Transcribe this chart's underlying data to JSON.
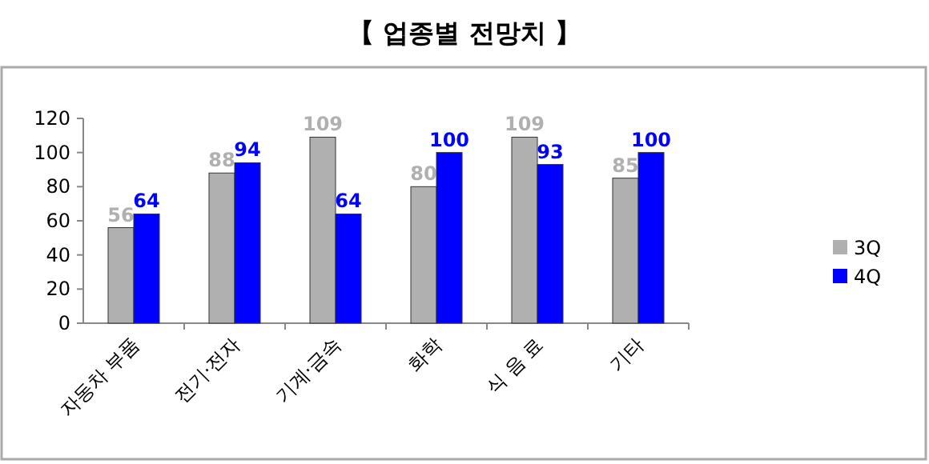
{
  "chart_data": {
    "type": "bar",
    "title": "【 업종별 전망치 】",
    "categories": [
      "자동차 부품",
      "전기·전자",
      "기계·금속",
      "화학",
      "식 음 료",
      "기타"
    ],
    "series": [
      {
        "name": "3Q",
        "color": "#b0b0b0",
        "values": [
          56,
          88,
          109,
          80,
          109,
          85
        ]
      },
      {
        "name": "4Q",
        "color": "#0000ff",
        "values": [
          64,
          94,
          64,
          100,
          93,
          100
        ]
      }
    ],
    "ylim": [
      0,
      120
    ],
    "yticks": [
      0,
      20,
      40,
      60,
      80,
      100,
      120
    ],
    "data_labels": true,
    "legend": "right",
    "grid": false
  }
}
